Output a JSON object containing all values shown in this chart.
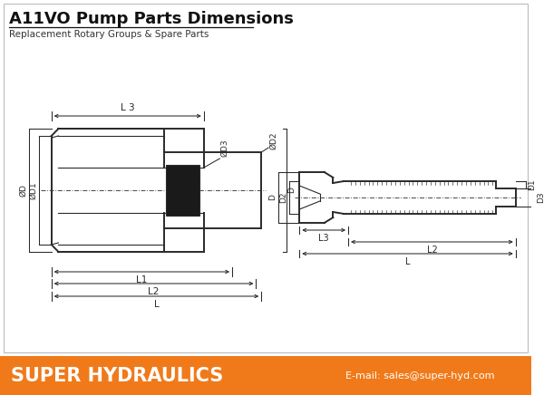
{
  "title": "A11VO Pump Parts Dimensions",
  "subtitle": "Replacement Rotary Groups & Spare Parts",
  "footer_text": "SUPER HYDRAULICS",
  "footer_email": "E-mail: sales@super-hyd.com",
  "footer_color": "#F07A1A",
  "bg_color": "#FFFFFF",
  "line_color": "#2a2a2a",
  "hatch_color": "#555555",
  "title_fontsize": 13,
  "subtitle_fontsize": 7.5,
  "footer_fontsize": 15,
  "footer_email_fontsize": 8
}
